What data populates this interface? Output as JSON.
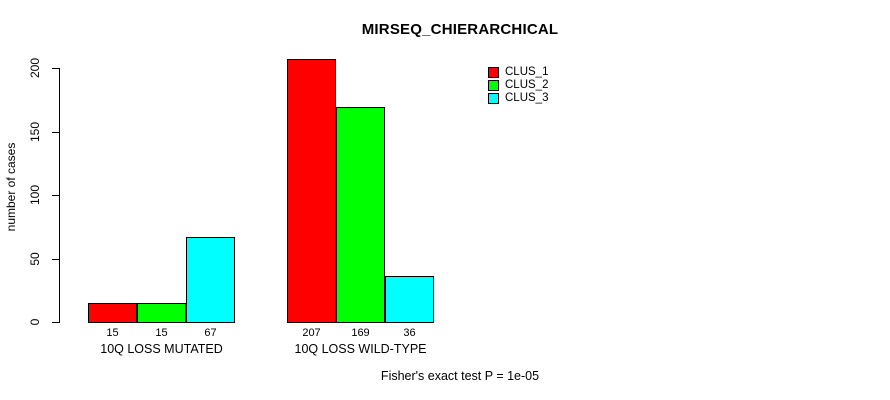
{
  "chart_data": {
    "type": "bar",
    "title": "MIRSEQ_CHIERARCHICAL",
    "ylabel": "number of cases",
    "xlabel": "",
    "ylim": [
      0,
      200
    ],
    "yticks": [
      0,
      50,
      100,
      150,
      200
    ],
    "grid": false,
    "legend_position": "top-right",
    "categories": [
      "10Q LOSS MUTATED",
      "10Q LOSS WILD-TYPE"
    ],
    "series": [
      {
        "name": "CLUS_1",
        "color": "#ff0000",
        "values": [
          15,
          207
        ]
      },
      {
        "name": "CLUS_2",
        "color": "#00ff00",
        "values": [
          15,
          169
        ]
      },
      {
        "name": "CLUS_3",
        "color": "#00ffff",
        "values": [
          67,
          36
        ]
      }
    ],
    "bar_border_color": "#000000",
    "background_color": "#ffffff",
    "footer": "Fisher's exact test P = 1e-05"
  }
}
